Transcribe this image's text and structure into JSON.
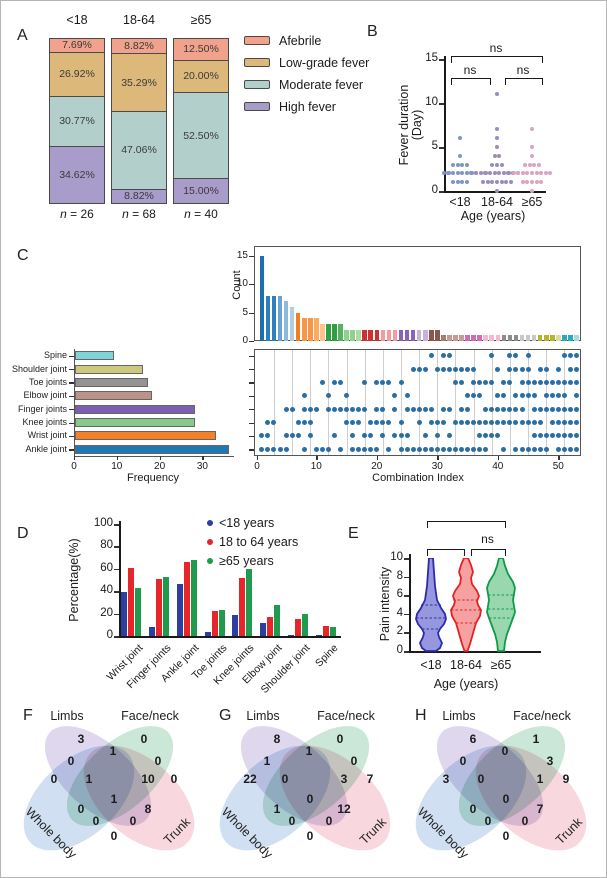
{
  "chart_data": [
    {
      "panel": "A",
      "letter": "A",
      "type": "bar",
      "subtype": "stacked-percentage",
      "categories": [
        "<18",
        "18-64",
        "≥65"
      ],
      "n_labels": [
        "n = 26",
        "n = 68",
        "n = 40"
      ],
      "series": [
        {
          "name": "Afebrile",
          "color": "#f0a28c",
          "values": [
            7.69,
            8.82,
            12.5
          ]
        },
        {
          "name": "Low-grade fever",
          "color": "#dcb87b",
          "values": [
            26.92,
            35.29,
            20.0
          ]
        },
        {
          "name": "Moderate fever",
          "color": "#b2cfcc",
          "values": [
            30.77,
            47.06,
            52.5
          ]
        },
        {
          "name": "High fever",
          "color": "#a89ccb",
          "values": [
            34.62,
            8.82,
            15.0
          ]
        }
      ],
      "value_labels": [
        [
          "7.69%",
          "26.92%",
          "30.77%",
          "34.62%"
        ],
        [
          "8.82%",
          "35.29%",
          "47.06%",
          "8.82%"
        ],
        [
          "12.50%",
          "20.00%",
          "52.50%",
          "15.00%"
        ]
      ]
    },
    {
      "panel": "B",
      "letter": "B",
      "type": "scatter",
      "ylabel1": "Fever duration",
      "ylabel2": "(Day)",
      "xlabel": "Age (years)",
      "ylim": [
        0,
        15
      ],
      "yticks": [
        0,
        5,
        10,
        15
      ],
      "groups": [
        {
          "label": "<18",
          "color": "#8195c2",
          "points": [
            [
              6,
              1
            ],
            [
              4,
              1
            ],
            [
              3,
              4
            ],
            [
              2,
              8
            ],
            [
              1,
              4
            ]
          ]
        },
        {
          "label": "18-64",
          "color": "#9c8cba",
          "points": [
            [
              11,
              1
            ],
            [
              7,
              1
            ],
            [
              6,
              1
            ],
            [
              5,
              1
            ],
            [
              4,
              2
            ],
            [
              3,
              3
            ],
            [
              2,
              10
            ],
            [
              1,
              7
            ],
            [
              0,
              1
            ]
          ]
        },
        {
          "label": "≥65",
          "color": "#dba4c2",
          "points": [
            [
              7,
              1
            ],
            [
              5,
              1
            ],
            [
              4,
              1
            ],
            [
              3,
              4
            ],
            [
              2,
              9
            ],
            [
              1,
              5
            ],
            [
              0,
              1
            ]
          ]
        }
      ],
      "sig": [
        {
          "pair": "<18 vs 18-64",
          "label": "ns"
        },
        {
          "pair": "18-64 vs ≥65",
          "label": "ns"
        },
        {
          "pair": "<18 vs ≥65",
          "label": "ns"
        }
      ]
    },
    {
      "panel": "C",
      "letter": "C",
      "type": "bar",
      "subtype": "upset-count",
      "ylabel": "Count",
      "yticks": [
        0,
        5,
        10,
        15
      ],
      "ylim": [
        0,
        15
      ],
      "values": [
        15,
        8,
        8,
        8,
        7,
        6,
        5,
        4,
        4,
        4,
        3,
        3,
        3,
        3,
        2,
        2,
        2,
        2,
        2,
        2,
        2,
        2,
        2,
        2,
        2,
        2,
        2,
        2,
        2,
        2,
        1,
        1,
        1,
        1,
        1,
        1,
        1,
        1,
        1,
        1,
        1,
        1,
        1,
        1,
        1,
        1,
        1,
        1,
        1,
        1,
        1,
        1,
        1
      ],
      "colors": [
        "#1b6fae",
        "#2f7ebd",
        "#2f7ebd",
        "#6ba3d6",
        "#8cbbe0",
        "#aecde9",
        "#f07f23",
        "#f79646",
        "#f79646",
        "#fbaa60",
        "#fdc38d",
        "#2f9e44",
        "#2f9e44",
        "#55b35f",
        "#8fd18c",
        "#8fd18c",
        "#a9dda5",
        "#cf3030",
        "#cf3030",
        "#cf3030",
        "#f49c9d",
        "#f49c9d",
        "#f49c9d",
        "#8a63b8",
        "#8a63b8",
        "#8a63b8",
        "#c5b3db",
        "#c5b3db",
        "#8c564b",
        "#8c564b",
        "#a97c70",
        "#c49c94",
        "#c49c94",
        "#c49c94",
        "#cf6db4",
        "#cf6db4",
        "#cf6db4",
        "#f4b8d3",
        "#f4b8d3",
        "#f4b8d3",
        "#8c8c8c",
        "#8c8c8c",
        "#8c8c8c",
        "#c9c9c9",
        "#c9c9c9",
        "#c9c9c9",
        "#b5b52c",
        "#b5b52c",
        "#b5b52c",
        "#dede9b",
        "#2aa9b9",
        "#2aa9b9",
        "#a5dce4"
      ]
    },
    {
      "panel": "C",
      "type": "heatmap",
      "subtype": "upset-membership-matrix",
      "xlabel": "Combination Index",
      "xticks": [
        0,
        10,
        20,
        30,
        40,
        50
      ],
      "dot_color": "#2a6ea6",
      "rows": [
        "Spine",
        "Shoulder joint",
        "Toe joints",
        "Elbow joint",
        "Finger joints",
        "Knee joints",
        "Wrist joint",
        "Ankle joint"
      ],
      "columns": [
        [
          7,
          8
        ],
        [
          6,
          7,
          8
        ],
        [
          6,
          8
        ],
        [
          8
        ],
        [
          5,
          7,
          8
        ],
        [
          5,
          7
        ],
        [
          6,
          7
        ],
        [
          4,
          5,
          6,
          8
        ],
        [
          5,
          6,
          7
        ],
        [
          5,
          8
        ],
        [
          3,
          8
        ],
        [
          4,
          5,
          8
        ],
        [
          3,
          5,
          7
        ],
        [
          3,
          5,
          8
        ],
        [
          4,
          5,
          6
        ],
        [
          5,
          6,
          7,
          8
        ],
        [
          5,
          6,
          8
        ],
        [
          3,
          5,
          7,
          8
        ],
        [
          6,
          7,
          8
        ],
        [
          3,
          5,
          6,
          8
        ],
        [
          3,
          5,
          6,
          7
        ],
        [
          3,
          6,
          8
        ],
        [
          4,
          5,
          7
        ],
        [
          3,
          6,
          7,
          8
        ],
        [
          4,
          5,
          7,
          8
        ],
        [
          2,
          5,
          8
        ],
        [
          2,
          5,
          6,
          8
        ],
        [
          2,
          5,
          7,
          8
        ],
        [
          1,
          5,
          6,
          8
        ],
        [
          2,
          6,
          7,
          8
        ],
        [
          1,
          2,
          5,
          6,
          8
        ],
        [
          1,
          2,
          5,
          7,
          8
        ],
        [
          2,
          3,
          6,
          8
        ],
        [
          2,
          3,
          5,
          6,
          8
        ],
        [
          2,
          4,
          5,
          6,
          8
        ],
        [
          2,
          3,
          4,
          6,
          8
        ],
        [
          3,
          4,
          6,
          7,
          8
        ],
        [
          3,
          5,
          6,
          7,
          8
        ],
        [
          1,
          3,
          5,
          6,
          7
        ],
        [
          2,
          4,
          5,
          6,
          7
        ],
        [
          3,
          4,
          5,
          6,
          8
        ],
        [
          1,
          2,
          3,
          5,
          6
        ],
        [
          1,
          2,
          4,
          5,
          6,
          8
        ],
        [
          2,
          3,
          4,
          5,
          6,
          8
        ],
        [
          1,
          2,
          3,
          4,
          6,
          8
        ],
        [
          3,
          4,
          5,
          6,
          7,
          8
        ],
        [
          2,
          3,
          5,
          6,
          7,
          8
        ],
        [
          2,
          3,
          4,
          5,
          7,
          8
        ],
        [
          3,
          4,
          5,
          6,
          7
        ],
        [
          2,
          3,
          4,
          5,
          6,
          7,
          8
        ],
        [
          1,
          3,
          4,
          5,
          6,
          7,
          8
        ],
        [
          1,
          2,
          3,
          5,
          6,
          7,
          8
        ],
        [
          1,
          2,
          3,
          4,
          5,
          6,
          7,
          8
        ]
      ]
    },
    {
      "panel": "C",
      "type": "bar",
      "subtype": "horizontal-frequency",
      "xlabel": "Frequency",
      "xticks": [
        0,
        10,
        20,
        30
      ],
      "xlim": [
        0,
        36
      ],
      "categories": [
        "Spine",
        "Shoulder joint",
        "Toe joints",
        "Elbow joint",
        "Finger joints",
        "Knee joints",
        "Wrist joint",
        "Ankle joint"
      ],
      "values": [
        9,
        16,
        17,
        18,
        28,
        28,
        33,
        36
      ],
      "colors": [
        "#7fd4d8",
        "#cdc87d",
        "#939393",
        "#bd9289",
        "#7c5fb5",
        "#86c98b",
        "#f58025",
        "#1f77b4"
      ]
    },
    {
      "panel": "D",
      "letter": "D",
      "type": "bar",
      "subtype": "grouped",
      "ylabel": "Percentage(%)",
      "yticks": [
        0,
        20,
        40,
        60,
        80,
        100
      ],
      "ylim": [
        0,
        100
      ],
      "categories": [
        "Wrist joint",
        "Finger joints",
        "Ankle joint",
        "Toe joints",
        "Knee joints",
        "Elbow joint",
        "Shoulder joint",
        "Spine"
      ],
      "series": [
        {
          "name": "<18 years",
          "color": "#2c3e9e",
          "values": [
            39,
            8,
            46,
            4,
            19,
            12,
            1,
            1
          ]
        },
        {
          "name": "18 to 64 years",
          "color": "#e62628",
          "values": [
            61,
            51,
            66,
            22,
            52,
            17,
            15,
            9
          ]
        },
        {
          "name": "≥65 years",
          "color": "#209a4c",
          "values": [
            43,
            53,
            68,
            23,
            60,
            28,
            20,
            8
          ]
        }
      ]
    },
    {
      "panel": "E",
      "letter": "E",
      "type": "area",
      "subtype": "violin",
      "ylabel": "Pain intensity",
      "xlabel": "Age (years)",
      "yticks": [
        0,
        2,
        4,
        6,
        8,
        10
      ],
      "ylim": [
        0,
        10
      ],
      "categories": [
        "<18",
        "18-64",
        "≥65"
      ],
      "violins": [
        {
          "label": "<18",
          "stroke": "#2b2bb0",
          "fill": "#7d7dd6"
        },
        {
          "label": "18-64",
          "stroke": "#e42222",
          "fill": "#f28a8a"
        },
        {
          "label": "≥65",
          "stroke": "#0f9a48",
          "fill": "#7fce9a"
        }
      ],
      "sig": [
        {
          "pair": "18-64 vs ≥65",
          "label": "ns"
        }
      ]
    },
    {
      "panel": "F",
      "letter": "F",
      "type": "venn",
      "sets": [
        "Limbs",
        "Face/neck",
        "Whole body",
        "Trunk"
      ],
      "set_colors": {
        "wholebody": "#6f9fd8",
        "limbs": "#9b85cb",
        "faceneck": "#5cb489",
        "trunk": "#e8899a"
      },
      "regions": {
        "limbs": 3,
        "faceneck": 0,
        "limbs_faceneck": 1,
        "wholebody_limbs": 0,
        "faceneck_trunk": 0,
        "wholebody": 0,
        "wholebody_limbs_faceneck": 1,
        "limbs_faceneck_trunk": 10,
        "trunk": 0,
        "all": 1,
        "wholebody_faceneck": 0,
        "limbs_trunk": 8,
        "wholebody_faceneck_trunk": 0,
        "wholebody_limbs_trunk": 0,
        "wholebody_trunk": 0
      }
    },
    {
      "panel": "G",
      "letter": "G",
      "type": "venn",
      "sets": [
        "Limbs",
        "Face/neck",
        "Whole body",
        "Trunk"
      ],
      "set_colors": {
        "wholebody": "#6f9fd8",
        "limbs": "#9b85cb",
        "faceneck": "#5cb489",
        "trunk": "#e8899a"
      },
      "regions": {
        "limbs": 8,
        "faceneck": 0,
        "limbs_faceneck": 1,
        "wholebody_limbs": 1,
        "faceneck_trunk": 0,
        "wholebody": 22,
        "wholebody_limbs_faceneck": 0,
        "limbs_faceneck_trunk": 3,
        "trunk": 7,
        "all": 0,
        "wholebody_faceneck": 1,
        "limbs_trunk": 12,
        "wholebody_faceneck_trunk": 0,
        "wholebody_limbs_trunk": 0,
        "wholebody_trunk": 0
      }
    },
    {
      "panel": "H",
      "letter": "H",
      "type": "venn",
      "sets": [
        "Limbs",
        "Face/neck",
        "Whole body",
        "Trunk"
      ],
      "set_colors": {
        "wholebody": "#6f9fd8",
        "limbs": "#9b85cb",
        "faceneck": "#5cb489",
        "trunk": "#e8899a"
      },
      "regions": {
        "limbs": 6,
        "faceneck": 1,
        "limbs_faceneck": 0,
        "wholebody_limbs": 0,
        "faceneck_trunk": 3,
        "wholebody": 3,
        "wholebody_limbs_faceneck": 0,
        "limbs_faceneck_trunk": 1,
        "trunk": 9,
        "all": 0,
        "wholebody_faceneck": 0,
        "limbs_trunk": 7,
        "wholebody_faceneck_trunk": 0,
        "wholebody_limbs_trunk": 0,
        "wholebody_trunk": 0
      }
    }
  ]
}
